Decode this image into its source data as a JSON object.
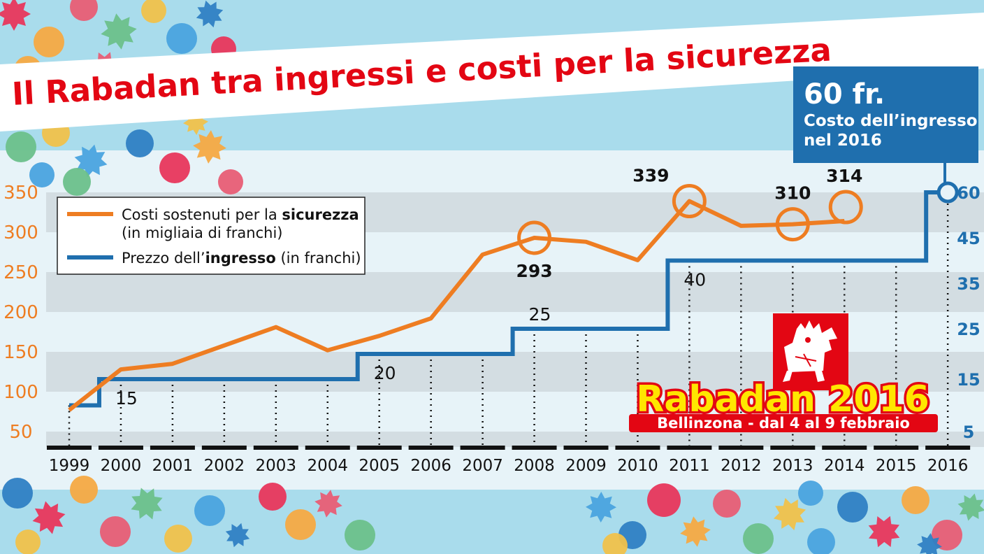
{
  "title": "Il Rabadan tra ingressi e costi per la sicurezza",
  "callout": {
    "price": "60 fr.",
    "line1": "Costo dell’ingresso",
    "line2": "nel 2016"
  },
  "legend": {
    "cost_line1_prefix": "Costi sostenuti per la ",
    "cost_line1_bold": "sicurezza",
    "cost_line2": "(in migliaia di franchi)",
    "price_prefix": "Prezzo dell’",
    "price_bold": "ingresso",
    "price_suffix": " (in franchi)"
  },
  "logo": {
    "name": "Rabadan 2016",
    "subtitle": "Bellinzona - dal 4 al 9 febbraio"
  },
  "colors": {
    "cost": "#ee7d22",
    "price": "#1f6fae",
    "title": "#e30613",
    "callout": "#1f6fae"
  },
  "chart_data": {
    "type": "line",
    "x": [
      "1999",
      "2000",
      "2001",
      "2002",
      "2003",
      "2004",
      "2005",
      "2006",
      "2007",
      "2008",
      "2009",
      "2010",
      "2011",
      "2012",
      "2013",
      "2014",
      "2015",
      "2016"
    ],
    "left_axis": {
      "ticks": [
        50,
        100,
        150,
        200,
        250,
        300,
        350
      ],
      "range": [
        25,
        375
      ]
    },
    "right_axis": {
      "ticks": [
        5,
        15,
        25,
        35,
        45,
        60
      ],
      "labels": [
        "5",
        "15",
        "25",
        "35",
        "45",
        "60"
      ]
    },
    "series": [
      {
        "name": "Costi sostenuti per la sicurezza (in migliaia di franchi)",
        "axis": "left",
        "values": [
          77,
          128,
          135,
          158,
          181,
          152,
          170,
          192,
          272,
          293,
          288,
          265,
          339,
          308,
          310,
          314,
          null,
          null
        ],
        "highlight_labels": {
          "2008": "293",
          "2011": "339",
          "2013": "310",
          "2014": "314"
        }
      },
      {
        "name": "Prezzo dell’ingresso (in franchi)",
        "axis": "right",
        "step": true,
        "values": [
          10,
          15,
          15,
          15,
          15,
          15,
          20,
          20,
          20,
          25,
          25,
          25,
          40,
          40,
          40,
          40,
          40,
          60
        ],
        "step_labels": {
          "2000": "15",
          "2005": "20",
          "2008": "25",
          "2011": "40"
        }
      }
    ]
  }
}
